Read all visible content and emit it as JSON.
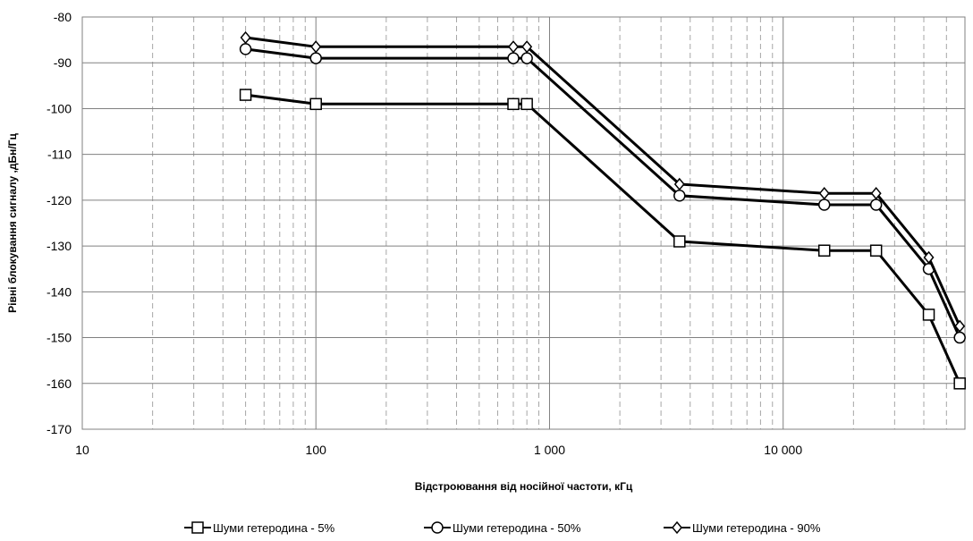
{
  "chart_data": {
    "type": "line",
    "xscale": "log",
    "xlim": [
      10,
      60000
    ],
    "ylim": [
      -170,
      -80
    ],
    "xlabel": "Відстроювання від носійної частоти, кГц",
    "ylabel": "Рівні блокування сигналу ,дБн/Гц",
    "x_ticks": [
      {
        "value": 10,
        "label": "10"
      },
      {
        "value": 100,
        "label": "100"
      },
      {
        "value": 1000,
        "label": "1 000"
      },
      {
        "value": 10000,
        "label": "10 000"
      }
    ],
    "y_ticks": [
      {
        "value": -80,
        "label": "-80"
      },
      {
        "value": -90,
        "label": "-90"
      },
      {
        "value": -100,
        "label": "-100"
      },
      {
        "value": -110,
        "label": "-110"
      },
      {
        "value": -120,
        "label": "-120"
      },
      {
        "value": -130,
        "label": "-130"
      },
      {
        "value": -140,
        "label": "-140"
      },
      {
        "value": -150,
        "label": "-150"
      },
      {
        "value": -160,
        "label": "-160"
      },
      {
        "value": -170,
        "label": "-170"
      }
    ],
    "grid": {
      "major": true,
      "minor_x": true
    },
    "legend_position": "bottom",
    "series": [
      {
        "name": "Шуми гетеродина - 5%",
        "marker": "square",
        "color": "#000000",
        "points": [
          [
            50,
            -97
          ],
          [
            100,
            -99
          ],
          [
            700,
            -99
          ],
          [
            800,
            -99
          ],
          [
            3600,
            -129
          ],
          [
            15000,
            -131
          ],
          [
            25000,
            -131
          ],
          [
            42000,
            -145
          ],
          [
            57000,
            -160
          ]
        ]
      },
      {
        "name": "Шуми гетеродина - 50%",
        "marker": "circle",
        "color": "#000000",
        "points": [
          [
            50,
            -87
          ],
          [
            100,
            -89
          ],
          [
            700,
            -89
          ],
          [
            800,
            -89
          ],
          [
            3600,
            -119
          ],
          [
            15000,
            -121
          ],
          [
            25000,
            -121
          ],
          [
            42000,
            -135
          ],
          [
            57000,
            -150
          ]
        ]
      },
      {
        "name": "Шуми гетеродина - 90%",
        "marker": "diamond",
        "color": "#000000",
        "points": [
          [
            50,
            -84.5
          ],
          [
            100,
            -86.5
          ],
          [
            700,
            -86.5
          ],
          [
            800,
            -86.5
          ],
          [
            3600,
            -116.5
          ],
          [
            15000,
            -118.5
          ],
          [
            25000,
            -118.5
          ],
          [
            42000,
            -132.5
          ],
          [
            57000,
            -147.5
          ]
        ]
      }
    ]
  }
}
